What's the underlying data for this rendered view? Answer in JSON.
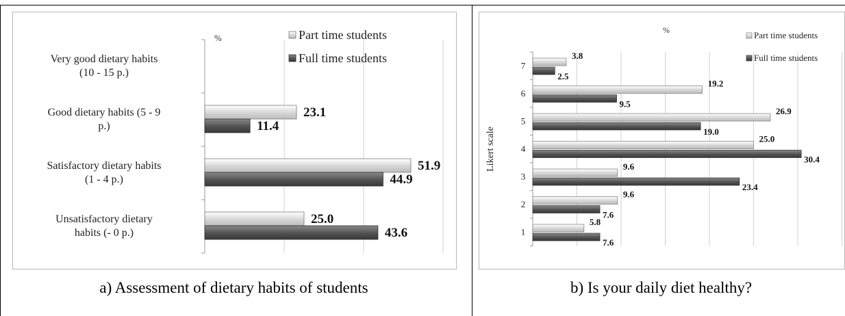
{
  "chart_data": [
    {
      "type": "bar",
      "orientation": "horizontal",
      "unit_label": "%",
      "categories": [
        "Very good dietary habits (10 - 15 p.)",
        "Good dietary habits (5 - 9 p.)",
        "Satisfactory dietary habits (1 - 4 p.)",
        "Unsatisfactory dietary habits (- 0 p.)"
      ],
      "category_lines": [
        [
          "Very good dietary habits",
          "(10 - 15 p.)"
        ],
        [
          "Good dietary habits (5 - 9",
          "p.)"
        ],
        [
          "Satisfactory dietary habits",
          "(1 - 4 p.)"
        ],
        [
          "Unsatisfactory dietary",
          "habits (- 0 p.)"
        ]
      ],
      "series": [
        {
          "name": "Part time students",
          "values": [
            null,
            23.1,
            51.9,
            25.0
          ],
          "labels": [
            "",
            "23.1",
            "51.9",
            "25.0"
          ],
          "color": "#e4e4e4"
        },
        {
          "name": "Full time students",
          "values": [
            null,
            11.4,
            44.9,
            43.6
          ],
          "labels": [
            "",
            "11.4",
            "44.9",
            "43.6"
          ],
          "color": "#555555"
        }
      ],
      "xlim": [
        0,
        60
      ],
      "grid": true,
      "legend_position": "top-right",
      "caption": "a) Assessment of dietary habits of students"
    },
    {
      "type": "bar",
      "orientation": "horizontal",
      "unit_label": "%",
      "ylabel": "Likert scale",
      "categories": [
        "7",
        "6",
        "5",
        "4",
        "3",
        "2",
        "1"
      ],
      "series": [
        {
          "name": "Part time students",
          "values": [
            3.8,
            19.2,
            26.9,
            25.0,
            9.6,
            9.6,
            5.8
          ],
          "labels": [
            "3.8",
            "19.2",
            "26.9",
            "25.0",
            "9.6",
            "9.6",
            "5.8"
          ],
          "color": "#e4e4e4"
        },
        {
          "name": "Full time students",
          "values": [
            2.5,
            9.5,
            19.0,
            30.4,
            23.4,
            7.6,
            7.6
          ],
          "labels": [
            "2.5",
            "9.5",
            "19.0",
            "30.4",
            "23.4",
            "7.6",
            "7.6"
          ],
          "color": "#555555"
        }
      ],
      "xlim": [
        0,
        35
      ],
      "grid": true,
      "legend_position": "top-right",
      "caption": "b) Is your daily diet healthy?"
    }
  ]
}
